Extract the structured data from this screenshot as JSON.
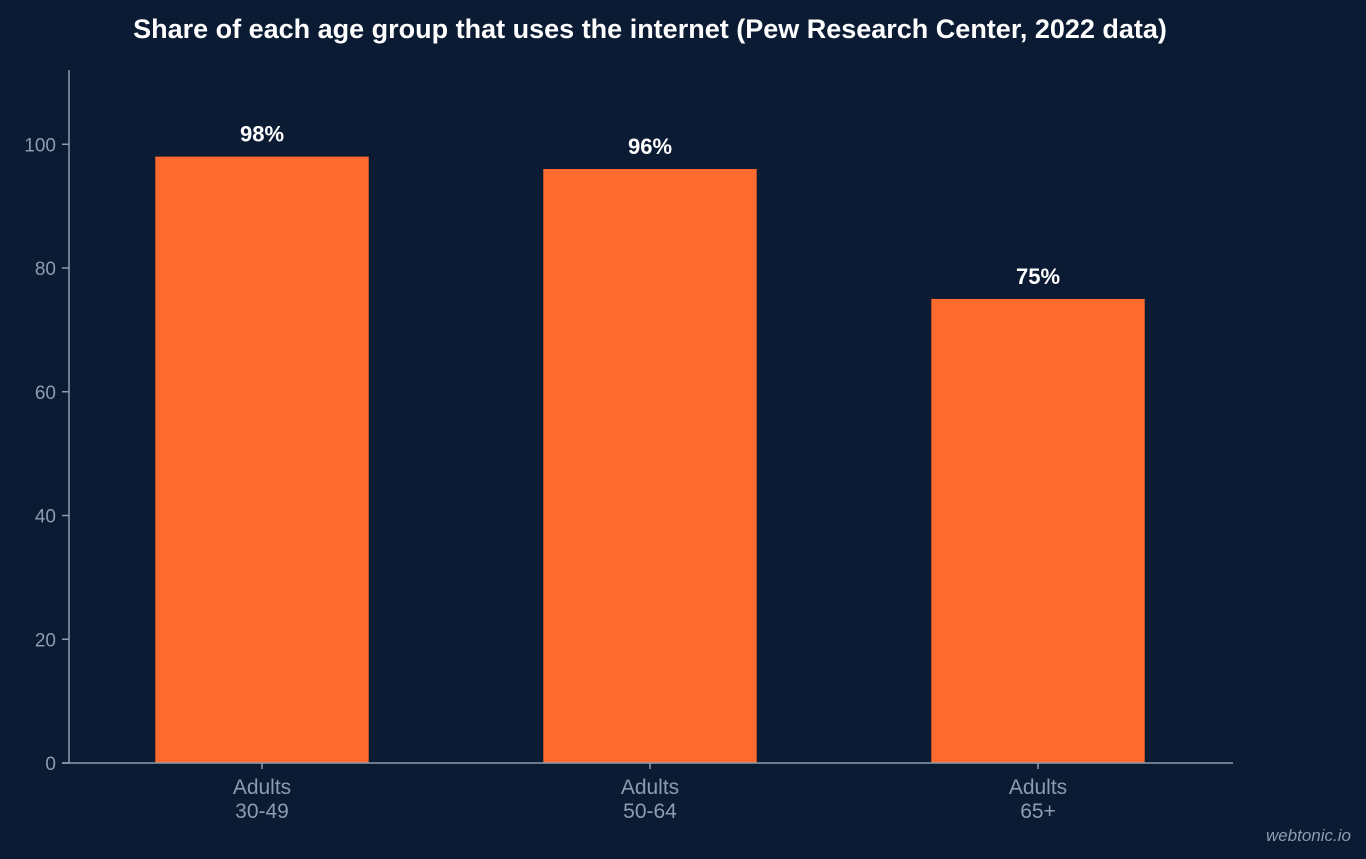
{
  "chart_data": {
    "type": "bar",
    "title": "Share of each age group that uses the internet (Pew Research Center, 2022 data)",
    "categories": [
      [
        "Adults",
        "30-49"
      ],
      [
        "Adults",
        "50-64"
      ],
      [
        "Adults",
        "65+"
      ]
    ],
    "values": [
      98,
      96,
      75
    ],
    "data_labels": [
      "98%",
      "96%",
      "75%"
    ],
    "yticks": [
      0,
      20,
      40,
      60,
      80,
      100
    ],
    "ylim": [
      0,
      112
    ],
    "xlabel": "",
    "ylabel": "",
    "grid": false,
    "legend": "none",
    "bar_color": "#ff6b2e"
  },
  "watermark": "webtonic.io"
}
